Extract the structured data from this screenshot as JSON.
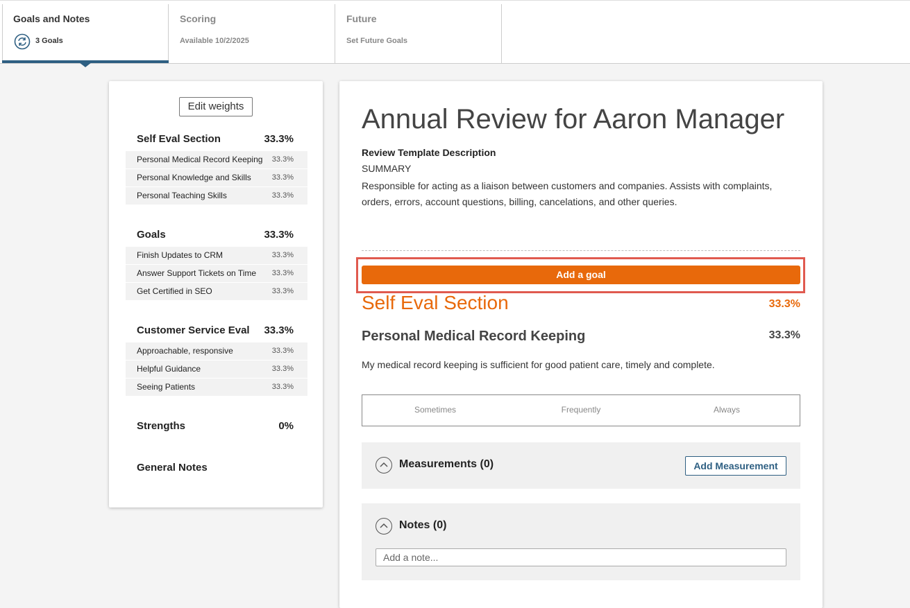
{
  "tabs": [
    {
      "title": "Goals and Notes",
      "subtitle": "3 Goals"
    },
    {
      "title": "Scoring",
      "subtitle": "Available 10/2/2025"
    },
    {
      "title": "Future",
      "subtitle": "Set Future Goals"
    }
  ],
  "sidebar": {
    "edit_button": "Edit weights",
    "sections": [
      {
        "name": "Self Eval Section",
        "weight": "33.3%",
        "items": [
          {
            "name": "Personal Medical Record Keeping",
            "weight": "33.3%"
          },
          {
            "name": "Personal Knowledge and Skills",
            "weight": "33.3%"
          },
          {
            "name": "Personal Teaching Skills",
            "weight": "33.3%"
          }
        ]
      },
      {
        "name": "Goals",
        "weight": "33.3%",
        "items": [
          {
            "name": "Finish Updates to CRM",
            "weight": "33.3%"
          },
          {
            "name": "Answer Support Tickets on Time",
            "weight": "33.3%"
          },
          {
            "name": "Get Certified in SEO",
            "weight": "33.3%"
          }
        ]
      },
      {
        "name": "Customer Service Eval",
        "weight": "33.3%",
        "items": [
          {
            "name": "Approachable, responsive",
            "weight": "33.3%"
          },
          {
            "name": "Helpful Guidance",
            "weight": "33.3%"
          },
          {
            "name": "Seeing Patients",
            "weight": "33.3%"
          }
        ]
      },
      {
        "name": "Strengths",
        "weight": "0%"
      },
      {
        "name": "General Notes"
      }
    ]
  },
  "main": {
    "title": "Annual Review for Aaron Manager",
    "description_label": "Review Template Description",
    "summary_label": "SUMMARY",
    "description": "Responsible for acting as a liaison between customers and companies. Assists with complaints, orders, errors, account questions, billing, cancelations, and other queries.",
    "add_goal": "Add a goal",
    "section_name": "Self Eval Section",
    "section_weight": "33.3%",
    "item_title": "Personal Medical Record Keeping",
    "item_weight": "33.3%",
    "item_description": "My medical record keeping is sufficient for good patient care, timely and complete.",
    "scale": [
      "Sometimes",
      "Frequently",
      "Always"
    ],
    "measurements": "Measurements (0)",
    "add_measurement": "Add Measurement",
    "notes": "Notes (0)",
    "note_placeholder": "Add a note..."
  }
}
